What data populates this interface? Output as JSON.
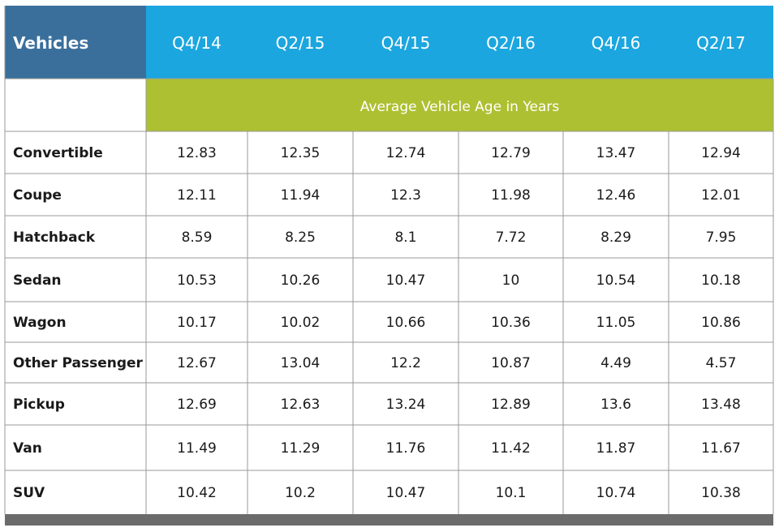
{
  "chart_data": {
    "type": "table",
    "title": "Average Vehicle Age in Years",
    "row_header_label": "Vehicles",
    "columns": [
      "Q4/14",
      "Q2/15",
      "Q4/15",
      "Q2/16",
      "Q4/16",
      "Q2/17"
    ],
    "rows": [
      {
        "label": "Convertible",
        "values": [
          "12.83",
          "12.35",
          "12.74",
          "12.79",
          "13.47",
          "12.94"
        ]
      },
      {
        "label": "Coupe",
        "values": [
          "12.11",
          "11.94",
          "12.3",
          "11.98",
          "12.46",
          "12.01"
        ]
      },
      {
        "label": "Hatchback",
        "values": [
          "8.59",
          "8.25",
          "8.1",
          "7.72",
          "8.29",
          "7.95"
        ]
      },
      {
        "label": "Sedan",
        "values": [
          "10.53",
          "10.26",
          "10.47",
          "10",
          "10.54",
          "10.18"
        ]
      },
      {
        "label": "Wagon",
        "values": [
          "10.17",
          "10.02",
          "10.66",
          "10.36",
          "11.05",
          "10.86"
        ]
      },
      {
        "label": "Other Passenger",
        "values": [
          "12.67",
          "13.04",
          "12.2",
          "10.87",
          "4.49",
          "4.57"
        ]
      },
      {
        "label": "Pickup",
        "values": [
          "12.69",
          "12.63",
          "13.24",
          "12.89",
          "13.6",
          "13.48"
        ]
      },
      {
        "label": "Van",
        "values": [
          "11.49",
          "11.29",
          "11.76",
          "11.42",
          "11.87",
          "11.67"
        ]
      },
      {
        "label": "SUV",
        "values": [
          "10.42",
          "10.2",
          "10.47",
          "10.1",
          "10.74",
          "10.38"
        ]
      }
    ]
  },
  "colors": {
    "corner_header_bg": "#3a6f9b",
    "column_header_bg": "#1ba6df",
    "subtitle_band_bg": "#adc032",
    "header_text": "#ffffff",
    "body_text": "#1a1a1a",
    "grid_line": "#9a9a9a",
    "footer_bar": "#6b6b6b"
  }
}
